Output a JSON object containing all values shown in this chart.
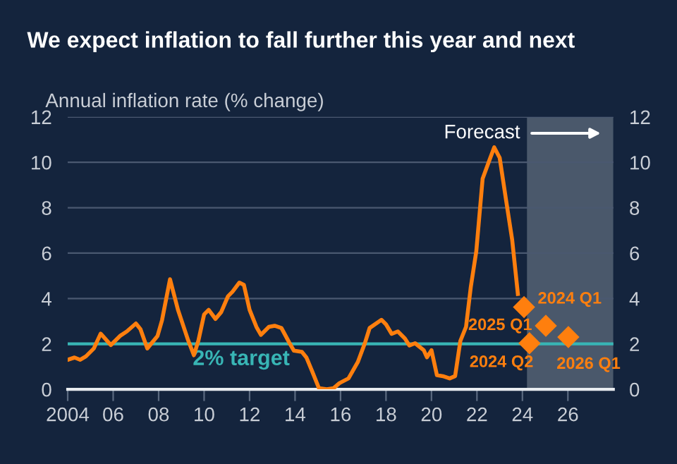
{
  "chart_data": {
    "type": "line",
    "title": "We expect inflation to fall further this year and next",
    "ylabel": "Annual inflation rate (% change)",
    "xlim": [
      2004,
      2028
    ],
    "xticks": [
      {
        "value": 2004,
        "label": "2004"
      },
      {
        "value": 2006,
        "label": "06"
      },
      {
        "value": 2008,
        "label": "08"
      },
      {
        "value": 2010,
        "label": "10"
      },
      {
        "value": 2012,
        "label": "12"
      },
      {
        "value": 2014,
        "label": "14"
      },
      {
        "value": 2016,
        "label": "16"
      },
      {
        "value": 2018,
        "label": "18"
      },
      {
        "value": 2020,
        "label": "20"
      },
      {
        "value": 2022,
        "label": "22"
      },
      {
        "value": 2024,
        "label": "24"
      },
      {
        "value": 2026,
        "label": "26"
      }
    ],
    "ylim": [
      0,
      12
    ],
    "yticks": [
      0,
      2,
      4,
      6,
      8,
      10,
      12
    ],
    "y2lim": [
      0,
      12
    ],
    "y2ticks": [
      0,
      2,
      4,
      6,
      8,
      10,
      12
    ],
    "grid": "y",
    "bands": [
      {
        "axis": "x",
        "from": 2024.2,
        "to": 2028,
        "label": "Forecast",
        "color": "#4a586b"
      }
    ],
    "ref_lines": [
      {
        "axis": "y",
        "value": 2,
        "label": "2% target",
        "color": "#38b5b5"
      }
    ],
    "series": [
      {
        "color": "#ff7f0e",
        "marker": "none",
        "x": [
          2004.0,
          2004.3,
          2004.55,
          2004.8,
          2005.15,
          2005.45,
          2005.9,
          2006.3,
          2006.6,
          2007.0,
          2007.2,
          2007.5,
          2007.95,
          2008.15,
          2008.5,
          2008.85,
          2009.3,
          2009.55,
          2009.75,
          2010.0,
          2010.2,
          2010.5,
          2010.75,
          2011.05,
          2011.25,
          2011.55,
          2011.75,
          2012.0,
          2012.3,
          2012.5,
          2012.85,
          2013.1,
          2013.4,
          2013.75,
          2013.95,
          2014.3,
          2014.5,
          2014.75,
          2015.05,
          2015.4,
          2015.7,
          2015.95,
          2016.35,
          2016.76,
          2017.07,
          2017.28,
          2017.8,
          2018.0,
          2018.25,
          2018.52,
          2018.83,
          2019.03,
          2019.28,
          2019.66,
          2019.8,
          2020.0,
          2020.24,
          2020.5,
          2020.8,
          2021.04,
          2021.27,
          2021.52,
          2021.73,
          2021.97,
          2022.25,
          2022.55,
          2022.76,
          2023.0,
          2023.28,
          2023.55,
          2023.8
        ],
        "values": [
          1.3,
          1.4,
          1.3,
          1.45,
          1.8,
          2.45,
          1.95,
          2.35,
          2.55,
          2.9,
          2.65,
          1.8,
          2.35,
          3.05,
          4.85,
          3.5,
          2.15,
          1.5,
          2.15,
          3.3,
          3.5,
          3.1,
          3.4,
          4.1,
          4.3,
          4.7,
          4.6,
          3.5,
          2.75,
          2.4,
          2.75,
          2.8,
          2.7,
          2.05,
          1.7,
          1.65,
          1.4,
          0.8,
          0.05,
          0.0,
          0.05,
          0.27,
          0.48,
          1.2,
          2.03,
          2.7,
          3.06,
          2.86,
          2.44,
          2.55,
          2.24,
          1.93,
          2.03,
          1.72,
          1.41,
          1.72,
          0.62,
          0.58,
          0.48,
          0.58,
          2.13,
          2.75,
          4.51,
          6.07,
          9.28,
          10.1,
          10.66,
          10.2,
          8.34,
          6.58,
          4.2
        ]
      },
      {
        "type": "scatter",
        "color": "#ff7f0e",
        "marker": "diamond",
        "x": [
          2024.07,
          2024.31,
          2025.03,
          2026.02
        ],
        "values": [
          3.62,
          2.03,
          2.8,
          2.3
        ]
      }
    ],
    "annotations": [
      {
        "text": "2024 Q1",
        "x": 2024.07,
        "y": 3.62
      },
      {
        "text": "2024 Q2",
        "x": 2024.31,
        "y": 2.03
      },
      {
        "text": "2025 Q1",
        "x": 2025.03,
        "y": 2.8
      },
      {
        "text": "2026 Q1",
        "x": 2026.02,
        "y": 2.3
      }
    ]
  }
}
